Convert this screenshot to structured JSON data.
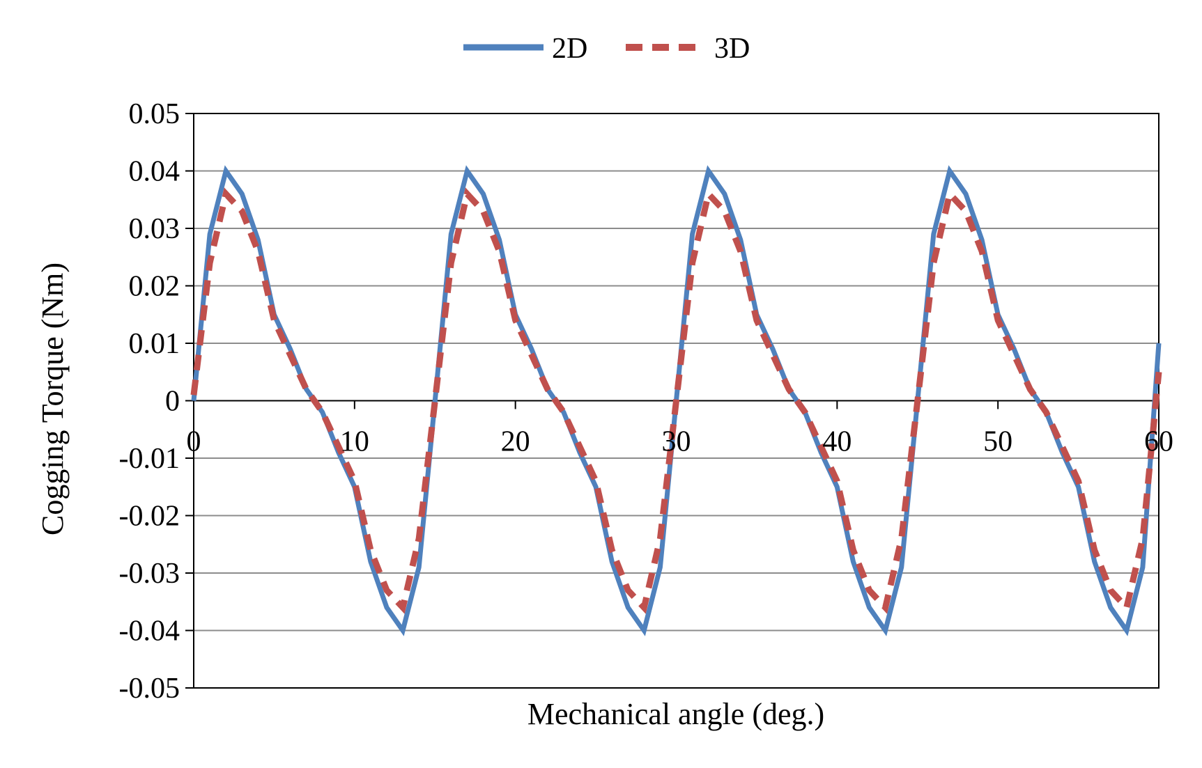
{
  "chart_data": {
    "type": "line",
    "title": "",
    "xlabel": "Mechanical angle (deg.)",
    "ylabel": "Cogging Torque (Nm)",
    "xlim": [
      0,
      60
    ],
    "ylim": [
      -0.05,
      0.05
    ],
    "xticks": [
      0,
      10,
      20,
      30,
      40,
      50,
      60
    ],
    "xtick_labels": [
      "0",
      "10",
      "20",
      "30",
      "40",
      "50",
      "60"
    ],
    "yticks": [
      0.05,
      0.04,
      0.03,
      0.02,
      0.01,
      0,
      -0.01,
      -0.02,
      -0.03,
      -0.04,
      -0.05
    ],
    "ytick_labels": [
      "0.05",
      "0.04",
      "0.03",
      "0.02",
      "0.01",
      "0",
      "-0.01",
      "-0.02",
      "-0.03",
      "-0.04",
      "-0.05"
    ],
    "grid": "horizontal",
    "legend_position": "top-center",
    "x": [
      0,
      1,
      2,
      3,
      4,
      5,
      6,
      7,
      8,
      9,
      10,
      11,
      12,
      13,
      14,
      15,
      16,
      17,
      18,
      19,
      20,
      21,
      22,
      23,
      24,
      25,
      26,
      27,
      28,
      29,
      30,
      31,
      32,
      33,
      34,
      35,
      36,
      37,
      38,
      39,
      40,
      41,
      42,
      43,
      44,
      45,
      46,
      47,
      48,
      49,
      50,
      51,
      52,
      53,
      54,
      55,
      56,
      57,
      58,
      59,
      60
    ],
    "series": [
      {
        "name": "2D",
        "color": "#4F81BD",
        "style": "solid",
        "values": [
          0,
          0.029,
          0.04,
          0.036,
          0.028,
          0.015,
          0.009,
          0.002,
          -0.002,
          -0.009,
          -0.015,
          -0.028,
          -0.036,
          -0.04,
          -0.029,
          0,
          0.029,
          0.04,
          0.036,
          0.028,
          0.015,
          0.009,
          0.002,
          -0.002,
          -0.009,
          -0.015,
          -0.028,
          -0.036,
          -0.04,
          -0.029,
          0,
          0.029,
          0.04,
          0.036,
          0.028,
          0.015,
          0.009,
          0.002,
          -0.002,
          -0.009,
          -0.015,
          -0.028,
          -0.036,
          -0.04,
          -0.029,
          0,
          0.029,
          0.04,
          0.036,
          0.028,
          0.015,
          0.009,
          0.002,
          -0.002,
          -0.009,
          -0.015,
          -0.028,
          -0.036,
          -0.04,
          -0.029,
          0.01
        ]
      },
      {
        "name": "3D",
        "color": "#C0504D",
        "style": "dashed",
        "values": [
          0.001,
          0.024,
          0.036,
          0.033,
          0.026,
          0.014,
          0.008,
          0.002,
          -0.002,
          -0.008,
          -0.014,
          -0.026,
          -0.033,
          -0.036,
          -0.024,
          0,
          0.024,
          0.036,
          0.033,
          0.026,
          0.014,
          0.008,
          0.002,
          -0.002,
          -0.008,
          -0.014,
          -0.026,
          -0.033,
          -0.036,
          -0.024,
          0,
          0.024,
          0.036,
          0.033,
          0.026,
          0.014,
          0.008,
          0.002,
          -0.002,
          -0.008,
          -0.014,
          -0.026,
          -0.033,
          -0.036,
          -0.024,
          0,
          0.024,
          0.036,
          0.033,
          0.026,
          0.014,
          0.008,
          0.002,
          -0.002,
          -0.008,
          -0.014,
          -0.026,
          -0.033,
          -0.036,
          -0.024,
          0.005
        ]
      }
    ]
  }
}
